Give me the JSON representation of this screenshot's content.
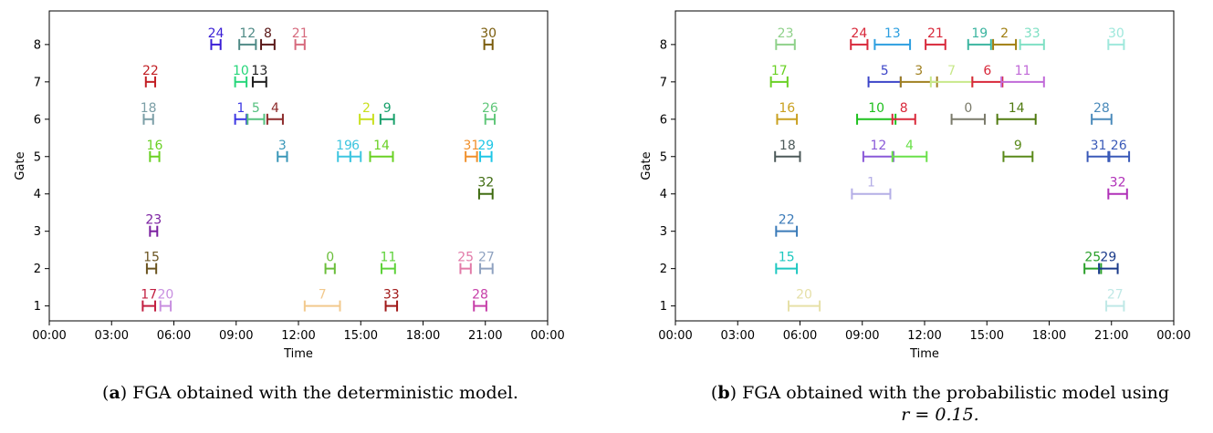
{
  "chart_data": [
    {
      "type": "interval",
      "xlabel": "Time",
      "ylabel": "Gate",
      "x_ticks": [
        "00:00",
        "03:00",
        "06:00",
        "09:00",
        "12:00",
        "15:00",
        "18:00",
        "21:00",
        "00:00"
      ],
      "y_ticks": [
        "1",
        "2",
        "3",
        "4",
        "5",
        "6",
        "7",
        "8"
      ],
      "xlim_hours": [
        0,
        24
      ],
      "ylim": [
        0.6,
        8.9
      ],
      "caption_tag": "a",
      "caption_text": "FGA obtained with the deterministic model.",
      "intervals": [
        {
          "label": "24",
          "gate": 8,
          "start": 7.8,
          "end": 8.25,
          "color": "#3a1ed6"
        },
        {
          "label": "12",
          "gate": 8,
          "start": 9.15,
          "end": 9.95,
          "color": "#4f8a86"
        },
        {
          "label": "8",
          "gate": 8,
          "start": 10.2,
          "end": 10.85,
          "color": "#5a1818"
        },
        {
          "label": "21",
          "gate": 8,
          "start": 11.85,
          "end": 12.3,
          "color": "#d66a7d"
        },
        {
          "label": "30",
          "gate": 8,
          "start": 20.95,
          "end": 21.35,
          "color": "#7a5c0c"
        },
        {
          "label": "22",
          "gate": 7,
          "start": 4.65,
          "end": 5.1,
          "color": "#c21f24"
        },
        {
          "label": "10",
          "gate": 7,
          "start": 8.95,
          "end": 9.5,
          "color": "#26d67a"
        },
        {
          "label": "13",
          "gate": 7,
          "start": 9.8,
          "end": 10.45,
          "color": "#1c1c1c"
        },
        {
          "label": "18",
          "gate": 6,
          "start": 4.55,
          "end": 5.0,
          "color": "#7a9ea6"
        },
        {
          "label": "1",
          "gate": 6,
          "start": 8.95,
          "end": 9.5,
          "color": "#3c37e3"
        },
        {
          "label": "5",
          "gate": 6,
          "start": 9.55,
          "end": 10.35,
          "color": "#55c07f"
        },
        {
          "label": "4",
          "gate": 6,
          "start": 10.5,
          "end": 11.25,
          "color": "#8c2a2a"
        },
        {
          "label": "2",
          "gate": 6,
          "start": 14.95,
          "end": 15.6,
          "color": "#c9e01e"
        },
        {
          "label": "9",
          "gate": 6,
          "start": 15.95,
          "end": 16.6,
          "color": "#18a06b"
        },
        {
          "label": "26",
          "gate": 6,
          "start": 21.0,
          "end": 21.45,
          "color": "#61c77a"
        },
        {
          "label": "16",
          "gate": 5,
          "start": 4.85,
          "end": 5.3,
          "color": "#6ad124"
        },
        {
          "label": "3",
          "gate": 5,
          "start": 11.0,
          "end": 11.45,
          "color": "#3a97b8"
        },
        {
          "label": "19",
          "gate": 5,
          "start": 13.9,
          "end": 14.5,
          "color": "#3fc6e0"
        },
        {
          "label": "6",
          "gate": 5,
          "start": 14.5,
          "end": 15.0,
          "color": "#3fc6e0"
        },
        {
          "label": "14",
          "gate": 5,
          "start": 15.45,
          "end": 16.55,
          "color": "#6ad124"
        },
        {
          "label": "31",
          "gate": 5,
          "start": 20.05,
          "end": 20.6,
          "color": "#f0902c"
        },
        {
          "label": "29",
          "gate": 5,
          "start": 20.75,
          "end": 21.3,
          "color": "#1fc6e6"
        },
        {
          "label": "32",
          "gate": 4,
          "start": 20.7,
          "end": 21.35,
          "color": "#3e6b10"
        },
        {
          "label": "23",
          "gate": 3,
          "start": 4.85,
          "end": 5.2,
          "color": "#7a1fa0"
        },
        {
          "label": "15",
          "gate": 2,
          "start": 4.7,
          "end": 5.15,
          "color": "#6b5420"
        },
        {
          "label": "0",
          "gate": 2,
          "start": 13.3,
          "end": 13.75,
          "color": "#6abe3a"
        },
        {
          "label": "11",
          "gate": 2,
          "start": 16.0,
          "end": 16.65,
          "color": "#5ed23a"
        },
        {
          "label": "25",
          "gate": 2,
          "start": 19.8,
          "end": 20.3,
          "color": "#e27aa8"
        },
        {
          "label": "27",
          "gate": 2,
          "start": 20.75,
          "end": 21.35,
          "color": "#8fa2c0"
        },
        {
          "label": "17",
          "gate": 1,
          "start": 4.5,
          "end": 5.1,
          "color": "#c21f40"
        },
        {
          "label": "20",
          "gate": 1,
          "start": 5.35,
          "end": 5.85,
          "color": "#c88fe0"
        },
        {
          "label": "7",
          "gate": 1,
          "start": 12.3,
          "end": 14.0,
          "color": "#f2c98d"
        },
        {
          "label": "33",
          "gate": 1,
          "start": 16.2,
          "end": 16.75,
          "color": "#a01818"
        },
        {
          "label": "28",
          "gate": 1,
          "start": 20.45,
          "end": 21.05,
          "color": "#c63fa8"
        }
      ]
    },
    {
      "type": "interval",
      "xlabel": "Time",
      "ylabel": "Gate",
      "x_ticks": [
        "00:00",
        "03:00",
        "06:00",
        "09:00",
        "12:00",
        "15:00",
        "18:00",
        "21:00",
        "00:00"
      ],
      "y_ticks": [
        "1",
        "2",
        "3",
        "4",
        "5",
        "6",
        "7",
        "8"
      ],
      "xlim_hours": [
        0,
        24
      ],
      "ylim": [
        0.6,
        8.9
      ],
      "caption_tag": "b",
      "caption_text": "FGA obtained with the probabilistic model using",
      "caption_text_line2": "r = 0.15.",
      "intervals": [
        {
          "label": "23",
          "gate": 8,
          "start": 4.85,
          "end": 5.75,
          "color": "#8fd18a"
        },
        {
          "label": "24",
          "gate": 8,
          "start": 8.45,
          "end": 9.25,
          "color": "#d8283a"
        },
        {
          "label": "13",
          "gate": 8,
          "start": 9.6,
          "end": 11.3,
          "color": "#2d9fe0"
        },
        {
          "label": "21",
          "gate": 8,
          "start": 12.05,
          "end": 13.0,
          "color": "#d8283a"
        },
        {
          "label": "19",
          "gate": 8,
          "start": 14.1,
          "end": 15.2,
          "color": "#3cb5a0"
        },
        {
          "label": "2",
          "gate": 8,
          "start": 15.3,
          "end": 16.4,
          "color": "#a07e10"
        },
        {
          "label": "33",
          "gate": 8,
          "start": 16.6,
          "end": 17.75,
          "color": "#7fe0c4"
        },
        {
          "label": "30",
          "gate": 8,
          "start": 20.85,
          "end": 21.6,
          "color": "#9fe8dc"
        },
        {
          "label": "17",
          "gate": 7,
          "start": 4.6,
          "end": 5.4,
          "color": "#6ad124"
        },
        {
          "label": "5",
          "gate": 7,
          "start": 9.3,
          "end": 10.85,
          "color": "#3c45c8"
        },
        {
          "label": "3",
          "gate": 7,
          "start": 10.85,
          "end": 12.6,
          "color": "#a08020"
        },
        {
          "label": "7",
          "gate": 7,
          "start": 12.3,
          "end": 14.3,
          "color": "#c8e88a"
        },
        {
          "label": "6",
          "gate": 7,
          "start": 14.3,
          "end": 15.75,
          "color": "#d8283a"
        },
        {
          "label": "11",
          "gate": 7,
          "start": 15.7,
          "end": 17.75,
          "color": "#c16ad8"
        },
        {
          "label": "16",
          "gate": 6,
          "start": 4.9,
          "end": 5.85,
          "color": "#c9a020"
        },
        {
          "label": "10",
          "gate": 6,
          "start": 8.75,
          "end": 10.6,
          "color": "#1ec01e"
        },
        {
          "label": "8",
          "gate": 6,
          "start": 10.45,
          "end": 11.55,
          "color": "#d8283a"
        },
        {
          "label": "0",
          "gate": 6,
          "start": 13.3,
          "end": 14.9,
          "color": "#7a7a6a"
        },
        {
          "label": "14",
          "gate": 6,
          "start": 15.5,
          "end": 17.35,
          "color": "#507a10"
        },
        {
          "label": "28",
          "gate": 6,
          "start": 20.05,
          "end": 21.0,
          "color": "#4a8aba"
        },
        {
          "label": "18",
          "gate": 5,
          "start": 4.8,
          "end": 6.0,
          "color": "#4d5a5a"
        },
        {
          "label": "12",
          "gate": 5,
          "start": 9.05,
          "end": 10.5,
          "color": "#8a5ad8"
        },
        {
          "label": "4",
          "gate": 5,
          "start": 10.45,
          "end": 12.1,
          "color": "#6ae04a"
        },
        {
          "label": "9",
          "gate": 5,
          "start": 15.8,
          "end": 17.2,
          "color": "#5a8a1a"
        },
        {
          "label": "31",
          "gate": 5,
          "start": 19.85,
          "end": 20.9,
          "color": "#3a5ab8"
        },
        {
          "label": "26",
          "gate": 5,
          "start": 20.85,
          "end": 21.85,
          "color": "#3a5ab8"
        },
        {
          "label": "1",
          "gate": 4,
          "start": 8.5,
          "end": 10.35,
          "color": "#b4aee6"
        },
        {
          "label": "32",
          "gate": 4,
          "start": 20.85,
          "end": 21.75,
          "color": "#b030b8"
        },
        {
          "label": "22",
          "gate": 3,
          "start": 4.85,
          "end": 5.85,
          "color": "#3a7ab8"
        },
        {
          "label": "15",
          "gate": 2,
          "start": 4.85,
          "end": 5.85,
          "color": "#1ec8c0"
        },
        {
          "label": "25",
          "gate": 2,
          "start": 19.7,
          "end": 20.5,
          "color": "#2aa02a"
        },
        {
          "label": "29",
          "gate": 2,
          "start": 20.4,
          "end": 21.3,
          "color": "#1a3a8a"
        },
        {
          "label": "20",
          "gate": 1,
          "start": 5.45,
          "end": 6.95,
          "color": "#e6e0a8"
        },
        {
          "label": "27",
          "gate": 1,
          "start": 20.75,
          "end": 21.6,
          "color": "#bfe8e6"
        }
      ]
    }
  ]
}
